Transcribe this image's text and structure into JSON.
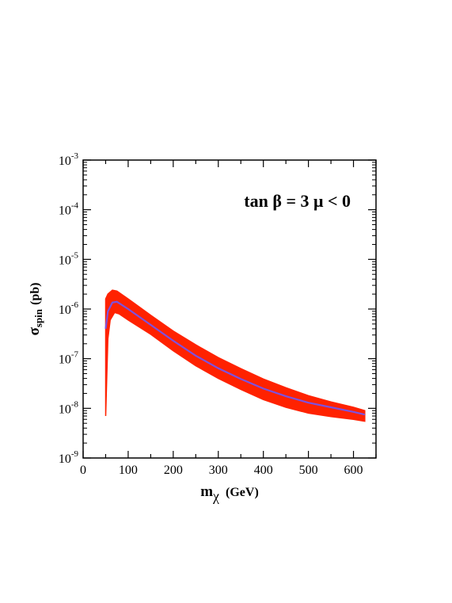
{
  "chart_data": {
    "type": "area",
    "annotation": "tan β = 3  μ < 0",
    "xlabel": {
      "main": "m",
      "sub": "χ",
      "unit": "(GeV)"
    },
    "ylabel": {
      "main": "σ",
      "sub": "spin",
      "unit": "(pb)"
    },
    "xlim": [
      0,
      650
    ],
    "ylim": [
      1e-09,
      0.001
    ],
    "yscale": "log",
    "x_ticks": [
      "0",
      "100",
      "200",
      "300",
      "400",
      "500",
      "600"
    ],
    "y_ticks": [
      {
        "base": "10",
        "exp": "-9"
      },
      {
        "base": "10",
        "exp": "-8"
      },
      {
        "base": "10",
        "exp": "-7"
      },
      {
        "base": "10",
        "exp": "-6"
      },
      {
        "base": "10",
        "exp": "-5"
      },
      {
        "base": "10",
        "exp": "-4"
      },
      {
        "base": "10",
        "exp": "-3"
      }
    ],
    "band_color": "#ff2200",
    "line_color": "#7b52e0",
    "band_upper": [
      {
        "x": 50,
        "y": 1.6e-06
      },
      {
        "x": 55,
        "y": 2e-06
      },
      {
        "x": 65,
        "y": 2.4e-06
      },
      {
        "x": 75,
        "y": 2.3e-06
      },
      {
        "x": 100,
        "y": 1.6e-06
      },
      {
        "x": 150,
        "y": 7.5e-07
      },
      {
        "x": 200,
        "y": 3.6e-07
      },
      {
        "x": 250,
        "y": 1.9e-07
      },
      {
        "x": 300,
        "y": 1.05e-07
      },
      {
        "x": 350,
        "y": 6.3e-08
      },
      {
        "x": 400,
        "y": 3.9e-08
      },
      {
        "x": 450,
        "y": 2.6e-08
      },
      {
        "x": 500,
        "y": 1.8e-08
      },
      {
        "x": 550,
        "y": 1.35e-08
      },
      {
        "x": 600,
        "y": 1.05e-08
      },
      {
        "x": 625,
        "y": 9e-09
      }
    ],
    "band_lower": [
      {
        "x": 50,
        "y": 7e-09
      },
      {
        "x": 55,
        "y": 2.5e-07
      },
      {
        "x": 60,
        "y": 6e-07
      },
      {
        "x": 70,
        "y": 8.5e-07
      },
      {
        "x": 80,
        "y": 8e-07
      },
      {
        "x": 100,
        "y": 6e-07
      },
      {
        "x": 150,
        "y": 3.1e-07
      },
      {
        "x": 200,
        "y": 1.45e-07
      },
      {
        "x": 250,
        "y": 7.2e-08
      },
      {
        "x": 300,
        "y": 4e-08
      },
      {
        "x": 350,
        "y": 2.4e-08
      },
      {
        "x": 400,
        "y": 1.5e-08
      },
      {
        "x": 450,
        "y": 1.05e-08
      },
      {
        "x": 500,
        "y": 8e-09
      },
      {
        "x": 550,
        "y": 6.8e-09
      },
      {
        "x": 600,
        "y": 6e-09
      },
      {
        "x": 625,
        "y": 5.5e-09
      }
    ],
    "central_line": [
      {
        "x": 50,
        "y": 4e-07
      },
      {
        "x": 55,
        "y": 9e-07
      },
      {
        "x": 65,
        "y": 1.35e-06
      },
      {
        "x": 75,
        "y": 1.4e-06
      },
      {
        "x": 100,
        "y": 1e-06
      },
      {
        "x": 150,
        "y": 4.8e-07
      },
      {
        "x": 200,
        "y": 2.3e-07
      },
      {
        "x": 250,
        "y": 1.15e-07
      },
      {
        "x": 300,
        "y": 6.4e-08
      },
      {
        "x": 350,
        "y": 3.9e-08
      },
      {
        "x": 400,
        "y": 2.5e-08
      },
      {
        "x": 450,
        "y": 1.75e-08
      },
      {
        "x": 500,
        "y": 1.3e-08
      },
      {
        "x": 550,
        "y": 1.05e-08
      },
      {
        "x": 600,
        "y": 8.5e-09
      },
      {
        "x": 625,
        "y": 7.5e-09
      }
    ]
  }
}
